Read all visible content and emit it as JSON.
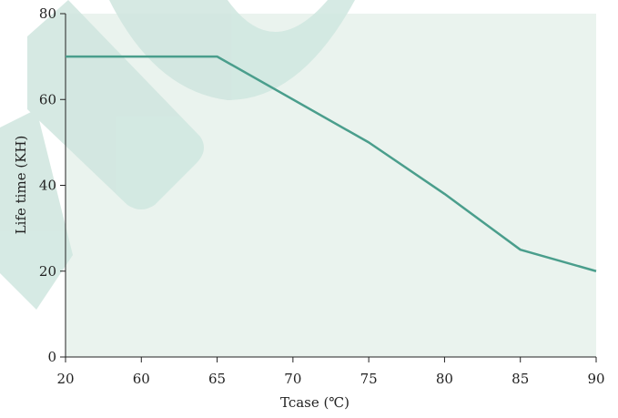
{
  "chart_data": {
    "type": "line",
    "xlabel": "Tcase (℃)",
    "ylabel": "Life time (KH)",
    "x_categories": [
      "20",
      "60",
      "65",
      "70",
      "75",
      "80",
      "85",
      "90"
    ],
    "y_ticks": [
      0,
      20,
      40,
      60,
      80
    ],
    "ylim": [
      0,
      80
    ],
    "grid": false,
    "series": [
      {
        "color": "#4a9e8c",
        "points": [
          {
            "x": "20",
            "y": 70
          },
          {
            "x": "65",
            "y": 70
          },
          {
            "x": "75",
            "y": 50
          },
          {
            "x": "80",
            "y": 38
          },
          {
            "x": "85",
            "y": 25
          },
          {
            "x": "90",
            "y": 20
          }
        ]
      }
    ],
    "plot_background": "#eaf3ee",
    "watermark_color": "#cfe6df"
  }
}
